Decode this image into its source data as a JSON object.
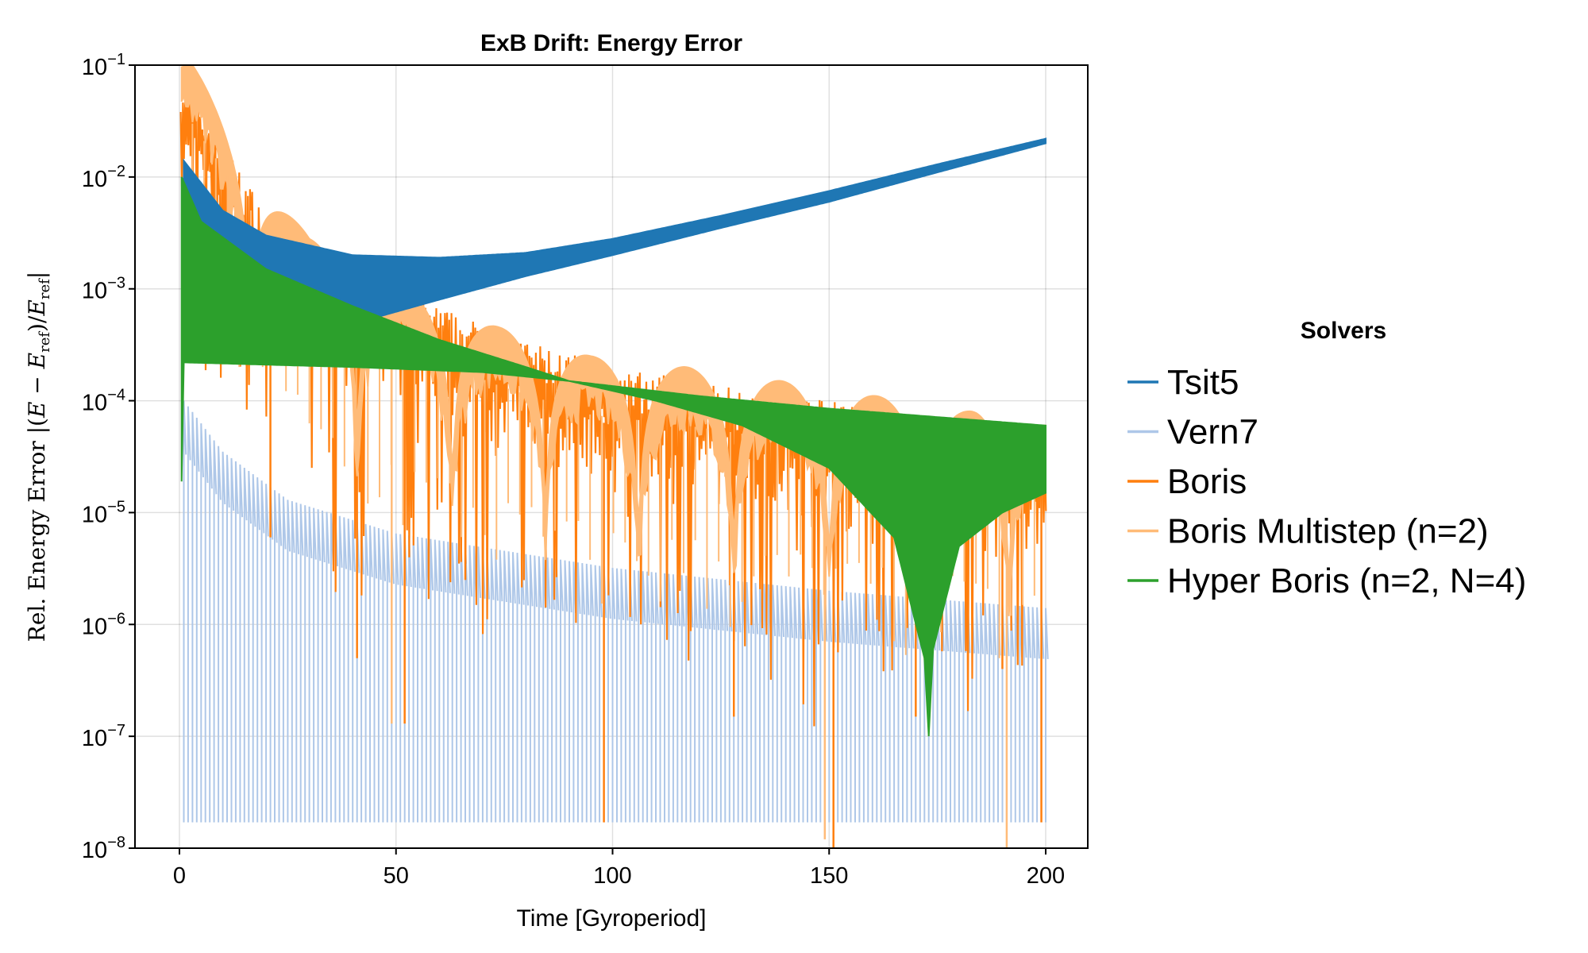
{
  "chart_data": {
    "type": "line",
    "title": "ExB Drift: Energy Error",
    "xlabel": "Time [Gyroperiod]",
    "ylabel": "Rel. Energy Error |(E − E_ref)/E_ref|",
    "ylabel_parts": {
      "prefix": "Rel. Energy Error  |(",
      "e": "E",
      "minus": " − ",
      "eref": "E",
      "ref": "ref",
      "mid": ")/",
      "eref2": "E",
      "ref2": "ref",
      "end": "|"
    },
    "xlim": [
      -10,
      210
    ],
    "ylim": [
      1e-08,
      0.1
    ],
    "yscale": "log10",
    "grid": true,
    "xticks": [
      0,
      50,
      100,
      150,
      200
    ],
    "xtick_labels": [
      "0",
      "50",
      "100",
      "150",
      "200"
    ],
    "yticks": [
      -1,
      -2,
      -3,
      -4,
      -5,
      -6,
      -7,
      -8
    ],
    "ytick_base": "10",
    "ytick_exponents": [
      "−1",
      "−2",
      "−3",
      "−4",
      "−5",
      "−6",
      "−7",
      "−8"
    ],
    "legend": {
      "title": "Solvers",
      "placement": "right-outside"
    },
    "series": [
      {
        "name": "Tsit5",
        "color": "#1f77b4",
        "style": "band",
        "upper": [
          [
            1,
            0.014
          ],
          [
            10,
            0.005
          ],
          [
            20,
            0.003
          ],
          [
            40,
            0.002
          ],
          [
            60,
            0.0019
          ],
          [
            80,
            0.0021
          ],
          [
            100,
            0.0028
          ],
          [
            125,
            0.0045
          ],
          [
            150,
            0.0075
          ],
          [
            175,
            0.013
          ],
          [
            200,
            0.022
          ]
        ],
        "lower": [
          [
            1,
            0.002
          ],
          [
            20,
            0.0007
          ],
          [
            45,
            0.00055
          ],
          [
            60,
            0.0008
          ],
          [
            80,
            0.0013
          ],
          [
            100,
            0.002
          ],
          [
            125,
            0.0035
          ],
          [
            150,
            0.006
          ],
          [
            175,
            0.011
          ],
          [
            200,
            0.02
          ]
        ]
      },
      {
        "name": "Vern7",
        "color": "#aec7e8",
        "style": "spikes",
        "upper": [
          [
            1,
            0.0001
          ],
          [
            10,
            3.5e-05
          ],
          [
            25,
            1.3e-05
          ],
          [
            50,
            6.5e-06
          ],
          [
            100,
            3.2e-06
          ],
          [
            150,
            2e-06
          ],
          [
            200,
            1.4e-06
          ]
        ],
        "lower": [
          [
            0,
            1.7e-08
          ],
          [
            200,
            1.7e-08
          ]
        ]
      },
      {
        "name": "Boris",
        "color": "#ff7f0e",
        "style": "spiky",
        "upper": [
          [
            0,
            0.1
          ],
          [
            10,
            0.02
          ],
          [
            20,
            0.005
          ],
          [
            30,
            0.0025
          ],
          [
            50,
            0.001
          ],
          [
            75,
            0.0004
          ],
          [
            100,
            0.0002
          ],
          [
            150,
            0.0001
          ],
          [
            200,
            5e-05
          ]
        ],
        "dips": [
          [
            21,
            6e-06
          ],
          [
            41,
            5e-07
          ],
          [
            52,
            1.3e-07
          ],
          [
            66,
            2.5e-06
          ],
          [
            98,
            1.7e-08
          ],
          [
            128,
            1.5e-07
          ],
          [
            151,
            1e-08
          ],
          [
            170,
            1.5e-07
          ],
          [
            190,
            4e-07
          ],
          [
            199,
            1.7e-08
          ]
        ]
      },
      {
        "name": "Boris Multistep (n=2)",
        "color": "#ffbb78",
        "style": "humps",
        "peaks": [
          [
            3,
            0.1
          ],
          [
            30,
            0.0028
          ],
          [
            52,
            0.001
          ],
          [
            74,
            0.00045
          ],
          [
            95,
            0.00025
          ],
          [
            117,
            0.0002
          ],
          [
            139,
            0.00015
          ],
          [
            161,
            0.00011
          ],
          [
            183,
            8e-05
          ],
          [
            200,
            6e-05
          ]
        ],
        "dips": [
          [
            49,
            1.3e-07
          ],
          [
            149,
            1.2e-08
          ],
          [
            191,
            1e-08
          ]
        ]
      },
      {
        "name": "Hyper Boris (n=2, N=4)",
        "color": "#2ca02c",
        "style": "band",
        "upper": [
          [
            0.5,
            0.01
          ],
          [
            5,
            0.004
          ],
          [
            20,
            0.0015
          ],
          [
            40,
            0.0007
          ],
          [
            60,
            0.00035
          ],
          [
            80,
            0.0002
          ],
          [
            90,
            0.00015
          ],
          [
            120,
            0.00011
          ],
          [
            150,
            8.5e-05
          ],
          [
            200,
            6e-05
          ]
        ],
        "lower": [
          [
            0.5,
            1.9e-05
          ],
          [
            1,
            0.00022
          ],
          [
            40,
            0.0002
          ],
          [
            70,
            0.00018
          ],
          [
            90,
            0.00015
          ],
          [
            110,
            0.0001
          ],
          [
            130,
            6e-05
          ],
          [
            150,
            2.5e-05
          ],
          [
            165,
            6e-06
          ],
          [
            172,
            5e-07
          ],
          [
            173,
            1e-07
          ],
          [
            174,
            6e-07
          ],
          [
            180,
            5e-06
          ],
          [
            190,
            1e-05
          ],
          [
            200,
            1.5e-05
          ]
        ]
      }
    ]
  }
}
